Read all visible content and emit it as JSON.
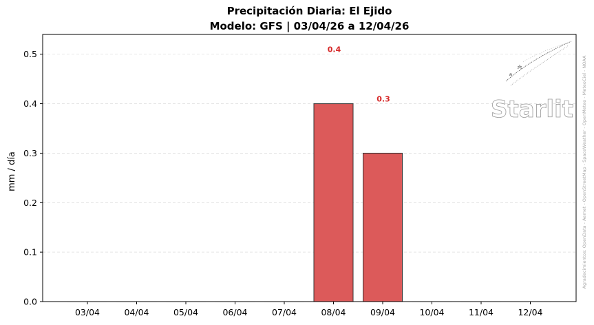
{
  "chart_data": {
    "type": "bar",
    "title": "Precipitación Diaria: El Ejido",
    "subtitle": "Modelo: GFS | 03/04/26 a 12/04/26",
    "xlabel": "",
    "ylabel": "mm / día",
    "categories": [
      "03/04",
      "04/04",
      "05/04",
      "06/04",
      "07/04",
      "08/04",
      "09/04",
      "10/04",
      "11/04",
      "12/04"
    ],
    "values": [
      0,
      0,
      0,
      0,
      0,
      0.4,
      0.3,
      0,
      0,
      0
    ],
    "value_labels": [
      "",
      "",
      "",
      "",
      "",
      "0.4",
      "0.3",
      "",
      "",
      ""
    ],
    "ylim": [
      0,
      0.54
    ],
    "yticks": [
      0.0,
      0.1,
      0.2,
      0.3,
      0.4,
      0.5
    ],
    "ytick_labels": [
      "0.0",
      "0.1",
      "0.2",
      "0.3",
      "0.4",
      "0.5"
    ],
    "grid": "horizontal dashed",
    "legend": "none",
    "colors": {
      "bar_fill": "#dc5a5a",
      "bar_edge": "#333333",
      "value_label": "#d62828",
      "grid": "#dddddd"
    }
  },
  "watermark": {
    "logo_text": "Starlit",
    "acknowledgement": "Agradecimientos: OpenData - Aemet - OpenStreetMap - SpaceWeather - OpenMeteo - MeteoCiel - NOAA"
  }
}
